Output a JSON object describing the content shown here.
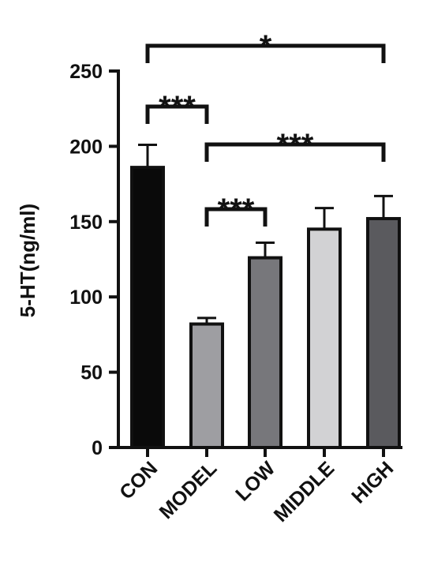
{
  "chart_data": {
    "type": "bar",
    "title": "",
    "xlabel": "",
    "ylabel": "5-HT(ng/ml)",
    "ylim": [
      0,
      250
    ],
    "yticks": [
      0,
      50,
      100,
      150,
      200,
      250
    ],
    "categories": [
      "CON",
      "MODEL",
      "LOW",
      "MIDDLE",
      "HIGH"
    ],
    "values": [
      186,
      82,
      126,
      145,
      152
    ],
    "errors": [
      15,
      4,
      10,
      14,
      15
    ],
    "colors": [
      "#0a0a0a",
      "#9e9ea2",
      "#77777b",
      "#d2d2d4",
      "#5a5a5e"
    ],
    "grid": false,
    "significance": [
      {
        "from": "CON",
        "to": "HIGH",
        "label": "*"
      },
      {
        "from": "CON",
        "to": "MODEL",
        "label": "***"
      },
      {
        "from": "MODEL",
        "to": "HIGH",
        "label": "***"
      },
      {
        "from": "MODEL",
        "to": "LOW",
        "label": "***"
      }
    ]
  }
}
